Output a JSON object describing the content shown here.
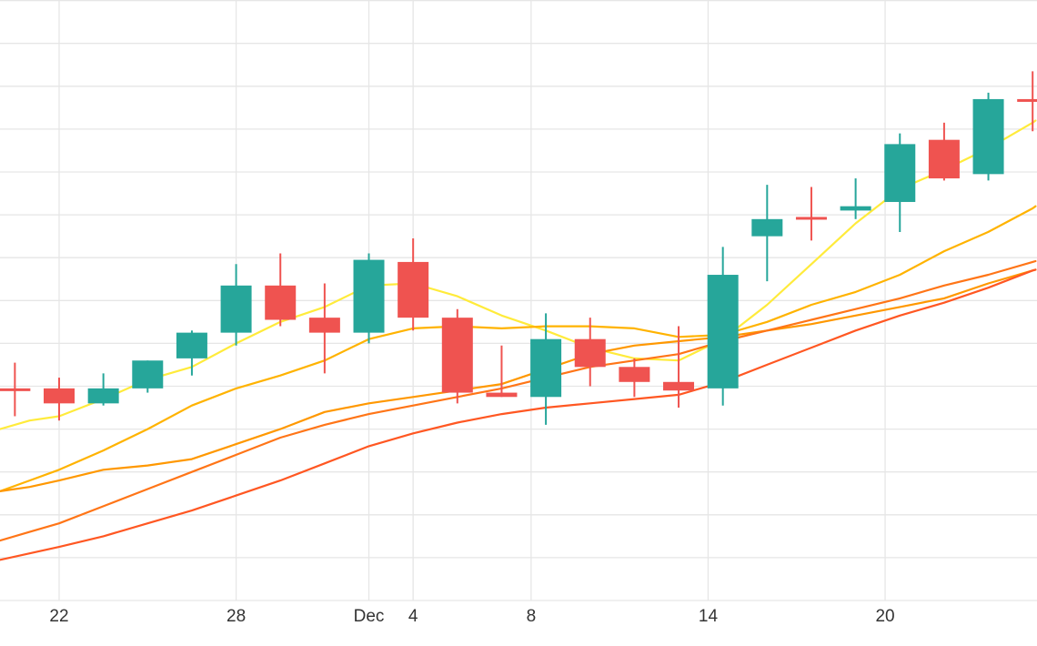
{
  "chart_data": {
    "type": "candlestick",
    "title": "",
    "xlabel": "",
    "ylabel": "",
    "x_ticks": [
      {
        "label": "22",
        "day": 22
      },
      {
        "label": "28",
        "day": 28
      },
      {
        "label": "Dec",
        "day": 32.5
      },
      {
        "label": "4",
        "day": 34
      },
      {
        "label": "8",
        "day": 38
      },
      {
        "label": "14",
        "day": 44
      },
      {
        "label": "20",
        "day": 50
      }
    ],
    "x_range": [
      20,
      55.1
    ],
    "y_range": [
      0,
      14
    ],
    "grid": true,
    "colors": {
      "up": "#26a69a",
      "down": "#ef5350",
      "grid": "#e6e6e6",
      "background": "#ffffff"
    },
    "candles": [
      {
        "day": 20.5,
        "open": 4.95,
        "high": 5.55,
        "low": 4.3,
        "close": 4.95
      },
      {
        "day": 22,
        "open": 4.95,
        "high": 5.2,
        "low": 4.2,
        "close": 4.6
      },
      {
        "day": 23.5,
        "open": 4.6,
        "high": 5.3,
        "low": 4.55,
        "close": 4.95
      },
      {
        "day": 25,
        "open": 4.95,
        "high": 5.6,
        "low": 4.85,
        "close": 5.6
      },
      {
        "day": 26.5,
        "open": 5.65,
        "high": 6.3,
        "low": 5.25,
        "close": 6.25
      },
      {
        "day": 28,
        "open": 6.25,
        "high": 7.85,
        "low": 5.95,
        "close": 7.35
      },
      {
        "day": 29.5,
        "open": 7.35,
        "high": 8.1,
        "low": 6.4,
        "close": 6.55
      },
      {
        "day": 31,
        "open": 6.6,
        "high": 7.4,
        "low": 5.3,
        "close": 6.25
      },
      {
        "day": 32.5,
        "open": 6.25,
        "high": 8.1,
        "low": 6.0,
        "close": 7.95
      },
      {
        "day": 34,
        "open": 7.9,
        "high": 8.45,
        "low": 6.3,
        "close": 6.6
      },
      {
        "day": 35.5,
        "open": 6.6,
        "high": 6.8,
        "low": 4.6,
        "close": 4.85
      },
      {
        "day": 37,
        "open": 4.85,
        "high": 5.95,
        "low": 4.75,
        "close": 4.75
      },
      {
        "day": 38.5,
        "open": 4.75,
        "high": 6.7,
        "low": 4.1,
        "close": 6.1
      },
      {
        "day": 40,
        "open": 6.1,
        "high": 6.6,
        "low": 5.0,
        "close": 5.45
      },
      {
        "day": 41.5,
        "open": 5.45,
        "high": 5.65,
        "low": 4.75,
        "close": 5.1
      },
      {
        "day": 43,
        "open": 5.1,
        "high": 6.4,
        "low": 4.5,
        "close": 4.9
      },
      {
        "day": 44.5,
        "open": 4.95,
        "high": 8.25,
        "low": 4.55,
        "close": 7.6
      },
      {
        "day": 46,
        "open": 8.5,
        "high": 9.7,
        "low": 7.45,
        "close": 8.9
      },
      {
        "day": 47.5,
        "open": 8.95,
        "high": 9.65,
        "low": 8.4,
        "close": 8.95
      },
      {
        "day": 49,
        "open": 9.1,
        "high": 9.85,
        "low": 8.9,
        "close": 9.2
      },
      {
        "day": 50.5,
        "open": 9.3,
        "high": 10.9,
        "low": 8.6,
        "close": 10.65
      },
      {
        "day": 52,
        "open": 10.75,
        "high": 11.15,
        "low": 9.8,
        "close": 9.85
      },
      {
        "day": 53.5,
        "open": 9.95,
        "high": 11.85,
        "low": 9.8,
        "close": 11.7
      },
      {
        "day": 55,
        "open": 11.7,
        "high": 12.35,
        "low": 10.95,
        "close": 11.7
      }
    ],
    "moving_averages": [
      {
        "color": "#ffeb3b",
        "points": [
          [
            20,
            4.0
          ],
          [
            21,
            4.2
          ],
          [
            22,
            4.3
          ],
          [
            23.5,
            4.7
          ],
          [
            25,
            5.15
          ],
          [
            26.5,
            5.45
          ],
          [
            28,
            6.0
          ],
          [
            29.5,
            6.5
          ],
          [
            31,
            6.85
          ],
          [
            32.5,
            7.35
          ],
          [
            34,
            7.4
          ],
          [
            35.5,
            7.1
          ],
          [
            37,
            6.65
          ],
          [
            38.5,
            6.3
          ],
          [
            40,
            5.9
          ],
          [
            41.5,
            5.65
          ],
          [
            43,
            5.6
          ],
          [
            44.5,
            6.1
          ],
          [
            46,
            6.9
          ],
          [
            47.5,
            7.85
          ],
          [
            49,
            8.8
          ],
          [
            50.5,
            9.6
          ],
          [
            52,
            10.05
          ],
          [
            53.5,
            10.55
          ],
          [
            55,
            11.15
          ],
          [
            55.1,
            11.2
          ]
        ]
      },
      {
        "color": "#ffb300",
        "points": [
          [
            20,
            2.55
          ],
          [
            21,
            2.8
          ],
          [
            22,
            3.05
          ],
          [
            23.5,
            3.5
          ],
          [
            25,
            4.0
          ],
          [
            26.5,
            4.55
          ],
          [
            28,
            4.95
          ],
          [
            29.5,
            5.25
          ],
          [
            31,
            5.6
          ],
          [
            32.5,
            6.1
          ],
          [
            34,
            6.35
          ],
          [
            35.5,
            6.4
          ],
          [
            37,
            6.35
          ],
          [
            38.5,
            6.4
          ],
          [
            40,
            6.4
          ],
          [
            41.5,
            6.35
          ],
          [
            43,
            6.15
          ],
          [
            44.5,
            6.2
          ],
          [
            46,
            6.5
          ],
          [
            47.5,
            6.9
          ],
          [
            49,
            7.2
          ],
          [
            50.5,
            7.6
          ],
          [
            52,
            8.15
          ],
          [
            53.5,
            8.6
          ],
          [
            55,
            9.15
          ],
          [
            55.1,
            9.2
          ]
        ]
      },
      {
        "color": "#ff9800",
        "points": [
          [
            20,
            2.55
          ],
          [
            21,
            2.65
          ],
          [
            22,
            2.8
          ],
          [
            23.5,
            3.05
          ],
          [
            25,
            3.15
          ],
          [
            26.5,
            3.3
          ],
          [
            28,
            3.65
          ],
          [
            29.5,
            4.0
          ],
          [
            31,
            4.4
          ],
          [
            32.5,
            4.6
          ],
          [
            34,
            4.75
          ],
          [
            35.5,
            4.9
          ],
          [
            37,
            5.05
          ],
          [
            38.5,
            5.4
          ],
          [
            40,
            5.75
          ],
          [
            41.5,
            5.95
          ],
          [
            43,
            6.05
          ],
          [
            44.5,
            6.15
          ],
          [
            46,
            6.3
          ],
          [
            47.5,
            6.45
          ],
          [
            49,
            6.65
          ],
          [
            50.5,
            6.85
          ],
          [
            52,
            7.05
          ],
          [
            53.5,
            7.4
          ],
          [
            55,
            7.7
          ],
          [
            55.1,
            7.72
          ]
        ]
      },
      {
        "color": "#ff7517",
        "points": [
          [
            20,
            1.4
          ],
          [
            21,
            1.6
          ],
          [
            22,
            1.8
          ],
          [
            23.5,
            2.2
          ],
          [
            25,
            2.6
          ],
          [
            26.5,
            3.0
          ],
          [
            28,
            3.4
          ],
          [
            29.5,
            3.8
          ],
          [
            31,
            4.1
          ],
          [
            32.5,
            4.35
          ],
          [
            34,
            4.55
          ],
          [
            35.5,
            4.75
          ],
          [
            37,
            4.95
          ],
          [
            38.5,
            5.2
          ],
          [
            40,
            5.45
          ],
          [
            41.5,
            5.6
          ],
          [
            43,
            5.75
          ],
          [
            44.5,
            6.05
          ],
          [
            46,
            6.3
          ],
          [
            47.5,
            6.55
          ],
          [
            49,
            6.8
          ],
          [
            50.5,
            7.05
          ],
          [
            52,
            7.35
          ],
          [
            53.5,
            7.6
          ],
          [
            55,
            7.9
          ],
          [
            55.1,
            7.92
          ]
        ]
      },
      {
        "color": "#ff5722",
        "points": [
          [
            20,
            0.95
          ],
          [
            21,
            1.1
          ],
          [
            22,
            1.25
          ],
          [
            23.5,
            1.5
          ],
          [
            25,
            1.8
          ],
          [
            26.5,
            2.1
          ],
          [
            28,
            2.45
          ],
          [
            29.5,
            2.8
          ],
          [
            31,
            3.2
          ],
          [
            32.5,
            3.6
          ],
          [
            34,
            3.9
          ],
          [
            35.5,
            4.15
          ],
          [
            37,
            4.35
          ],
          [
            38.5,
            4.5
          ],
          [
            40,
            4.6
          ],
          [
            41.5,
            4.7
          ],
          [
            43,
            4.8
          ],
          [
            44.5,
            5.1
          ],
          [
            46,
            5.5
          ],
          [
            47.5,
            5.9
          ],
          [
            49,
            6.3
          ],
          [
            50.5,
            6.65
          ],
          [
            52,
            6.95
          ],
          [
            53.5,
            7.3
          ],
          [
            55,
            7.7
          ],
          [
            55.1,
            7.72
          ]
        ]
      }
    ]
  }
}
